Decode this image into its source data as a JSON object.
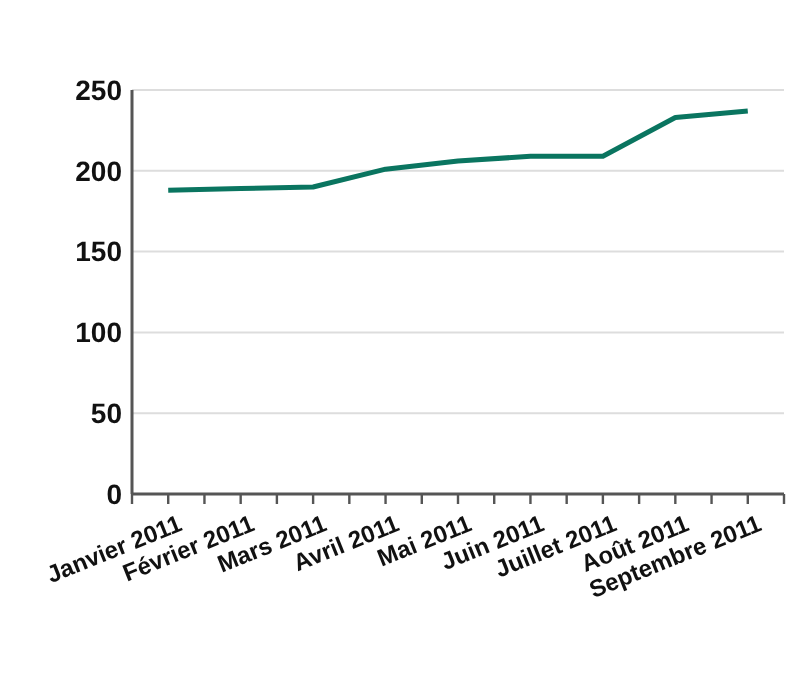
{
  "chart_data": {
    "type": "line",
    "categories": [
      "Janvier 2011",
      "Février 2011",
      "Mars 2011",
      "Avril 2011",
      "Mai 2011",
      "Juin 2011",
      "Juillet 2011",
      "Août 2011",
      "Septembre 2011"
    ],
    "values": [
      188,
      189,
      190,
      201,
      206,
      209,
      209,
      233,
      237
    ],
    "color": "#0a7560",
    "ylim": [
      0,
      250
    ],
    "yticks": [
      0,
      50,
      100,
      150,
      200,
      250
    ],
    "grid": "y",
    "marker": "none",
    "line_style": "solid"
  }
}
